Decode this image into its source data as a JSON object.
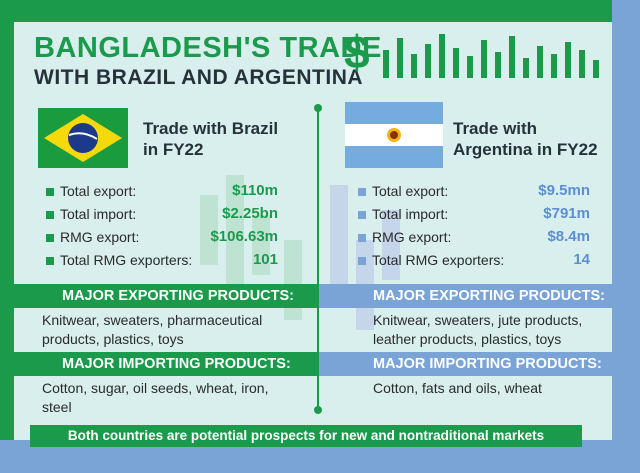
{
  "title_line1": "BANGLADESH'S TRADE",
  "title_line2": "WITH BRAZIL AND ARGENTINA",
  "dollar_sign": "$",
  "brazil": {
    "heading": "Trade with Brazil in FY22",
    "stats": [
      {
        "label": "Total export:",
        "value": "$110m"
      },
      {
        "label": "Total import:",
        "value": "$2.25bn"
      },
      {
        "label": "RMG export:",
        "value": "$106.63m"
      },
      {
        "label": "Total RMG exporters:",
        "value": "101"
      }
    ],
    "exporting_heading": "MAJOR EXPORTING PRODUCTS:",
    "exporting_text": "Knitwear, sweaters, pharmaceutical products, plastics, toys",
    "importing_heading": "MAJOR IMPORTING PRODUCTS:",
    "importing_text": "Cotton, sugar, oil seeds, wheat, iron, steel"
  },
  "argentina": {
    "heading": "Trade with Argentina in FY22",
    "stats": [
      {
        "label": "Total export:",
        "value": "$9.5mn"
      },
      {
        "label": "Total import:",
        "value": "$791m"
      },
      {
        "label": "RMG export:",
        "value": "$8.4m"
      },
      {
        "label": "Total RMG exporters:",
        "value": "14"
      }
    ],
    "exporting_heading": "MAJOR EXPORTING PRODUCTS:",
    "exporting_text": "Knitwear, sweaters, jute products, leather products, plastics, toys",
    "importing_heading": "MAJOR IMPORTING PRODUCTS:",
    "importing_text": "Cotton, fats and oils, wheat"
  },
  "footer": "Both countries are potential prospects for new and nontraditional markets",
  "colors": {
    "green": "#1b9a4c",
    "blue": "#7aa3d6",
    "panel": "#d9efee",
    "argentina_value": "#5b8fd0"
  },
  "icons": [
    "dollar-icon",
    "bar-graphic-icon",
    "brazil-flag-icon",
    "argentina-flag-icon",
    "bullet-square-icon"
  ]
}
